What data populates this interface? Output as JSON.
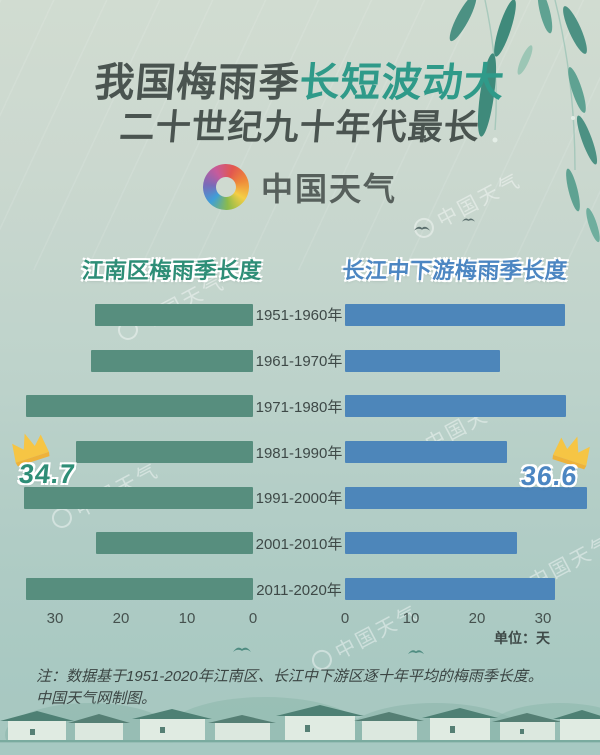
{
  "title": {
    "line1_dark": "我国梅雨季",
    "line1_accent": "长短波动大",
    "line2": "二十世纪九十年代最长"
  },
  "logo": {
    "text": "中国天气"
  },
  "chart_data": {
    "type": "bar",
    "layout": "horizontal back-to-back (left series grows leftward, right series grows rightward)",
    "categories": [
      "1951-1960年",
      "1961-1970年",
      "1971-1980年",
      "1981-1990年",
      "1991-2000年",
      "2001-2010年",
      "2011-2020年"
    ],
    "series": [
      {
        "name": "江南区梅雨季长度",
        "color": "#578e7e",
        "values": [
          24.0,
          24.6,
          34.4,
          26.8,
          34.7,
          23.8,
          34.4
        ]
      },
      {
        "name": "长江中下游梅雨季长度",
        "color": "#4d86ba",
        "values": [
          33.3,
          23.5,
          33.5,
          24.5,
          36.6,
          26.0,
          31.8
        ]
      }
    ],
    "highlight": {
      "category": "1991-2000年",
      "left_value": "34.7",
      "right_value": "36.6"
    },
    "axis": {
      "left_ticks": [
        "30",
        "20",
        "10",
        "0"
      ],
      "right_ticks": [
        "0",
        "10",
        "20",
        "30"
      ],
      "unit_label": "单位：天",
      "max": 37
    },
    "legend_position": "headers above each half"
  },
  "note": {
    "line1": "注：数据基于1951-2020年江南区、长江中下游区逐十年平均的梅雨季长度。",
    "line2": "中国天气网制图。"
  },
  "watermark": {
    "text": "中国天气"
  },
  "colors": {
    "title_dark": "#4a5450",
    "title_accent": "#2f9a89",
    "header_left": "#2e8e77",
    "header_right": "#4c86c2",
    "bar_left": "#578e7e",
    "bar_right": "#4d86ba",
    "crown": "#f6c544"
  }
}
